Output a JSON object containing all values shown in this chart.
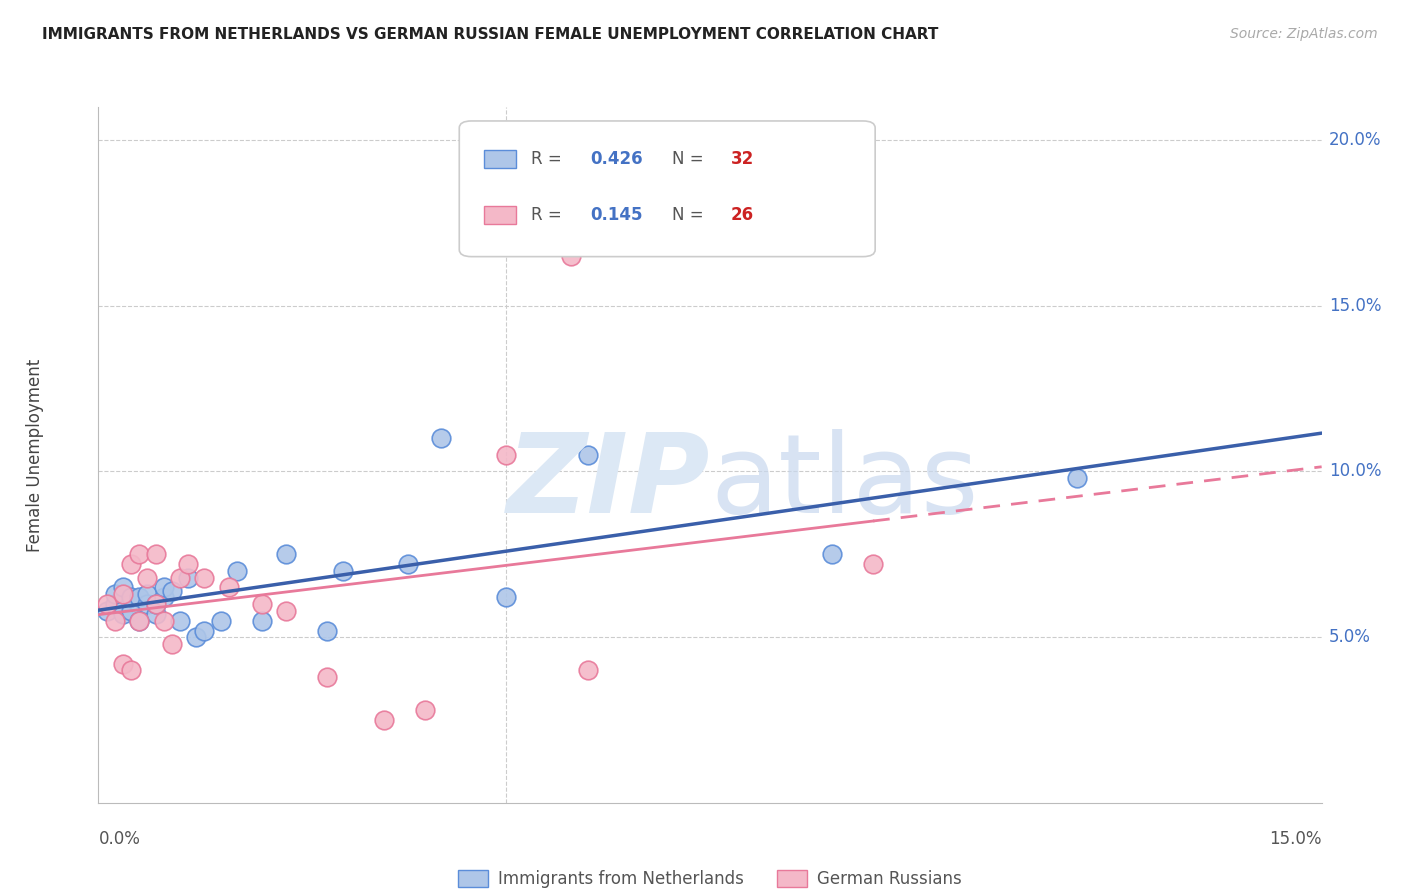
{
  "title": "IMMIGRANTS FROM NETHERLANDS VS GERMAN RUSSIAN FEMALE UNEMPLOYMENT CORRELATION CHART",
  "source": "Source: ZipAtlas.com",
  "ylabel": "Female Unemployment",
  "xlim": [
    0.0,
    0.15
  ],
  "ylim": [
    0.0,
    0.21
  ],
  "y_ticks": [
    0.05,
    0.1,
    0.15,
    0.2
  ],
  "y_tick_labels": [
    "5.0%",
    "10.0%",
    "15.0%",
    "20.0%"
  ],
  "legend_r1": "0.426",
  "legend_n1": "32",
  "legend_r2": "0.145",
  "legend_n2": "26",
  "legend_label1": "Immigrants from Netherlands",
  "legend_label2": "German Russians",
  "blue_fill": "#aec6e8",
  "pink_fill": "#f4b8c8",
  "blue_edge": "#5b8dd9",
  "pink_edge": "#e8799a",
  "blue_line_color": "#3a5faa",
  "pink_line_color": "#e8799a",
  "r_color": "#4472c4",
  "n_color": "#cc2222",
  "blue_scatter_x": [
    0.001,
    0.002,
    0.002,
    0.003,
    0.003,
    0.004,
    0.004,
    0.005,
    0.005,
    0.006,
    0.006,
    0.007,
    0.007,
    0.008,
    0.008,
    0.009,
    0.01,
    0.011,
    0.012,
    0.013,
    0.015,
    0.017,
    0.02,
    0.023,
    0.028,
    0.03,
    0.038,
    0.042,
    0.05,
    0.06,
    0.09,
    0.12
  ],
  "blue_scatter_y": [
    0.058,
    0.06,
    0.063,
    0.057,
    0.065,
    0.058,
    0.062,
    0.055,
    0.062,
    0.06,
    0.063,
    0.057,
    0.06,
    0.062,
    0.065,
    0.064,
    0.055,
    0.068,
    0.05,
    0.052,
    0.055,
    0.07,
    0.055,
    0.075,
    0.052,
    0.07,
    0.072,
    0.11,
    0.062,
    0.105,
    0.075,
    0.098
  ],
  "pink_scatter_x": [
    0.001,
    0.002,
    0.003,
    0.003,
    0.004,
    0.004,
    0.005,
    0.005,
    0.006,
    0.007,
    0.007,
    0.008,
    0.009,
    0.01,
    0.011,
    0.013,
    0.016,
    0.02,
    0.023,
    0.028,
    0.035,
    0.04,
    0.05,
    0.058,
    0.06,
    0.095
  ],
  "pink_scatter_y": [
    0.06,
    0.055,
    0.042,
    0.063,
    0.04,
    0.072,
    0.055,
    0.075,
    0.068,
    0.06,
    0.075,
    0.055,
    0.048,
    0.068,
    0.072,
    0.068,
    0.065,
    0.06,
    0.058,
    0.038,
    0.025,
    0.028,
    0.105,
    0.165,
    0.04,
    0.072
  ],
  "blue_marker_size": 180,
  "pink_marker_size": 180
}
